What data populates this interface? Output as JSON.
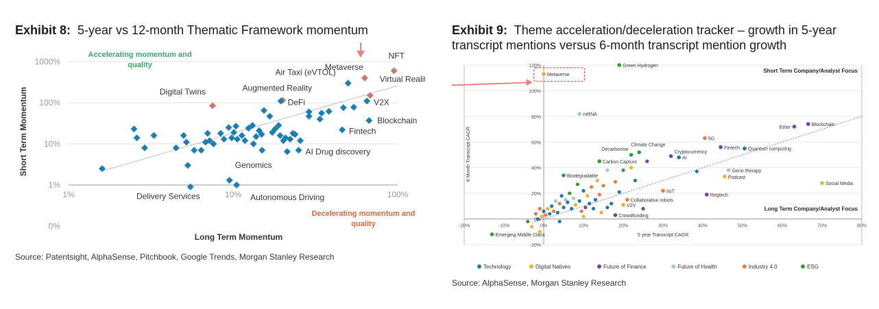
{
  "exhibit8": {
    "label": "Exhibit 8:",
    "title": "5-year vs 12-month Thematic Framework momentum",
    "source": "Source: Patentsight, AlphaSense, Pitchbook, Google Trends, Morgan Stanley Research"
  },
  "exhibit9": {
    "label": "Exhibit 9:",
    "title_line1": "Theme acceleration/deceleration tracker – growth in 5-year",
    "title_line2": "transcript mentions versus 6-month transcript mention growth",
    "source": "Source: AlphaSense, Morgan Stanley Research"
  },
  "colors": {
    "blue_marker": "#1b7fb5",
    "highlight_marker": "#c97b6b",
    "arrow": "#f08080",
    "green_text": "#3aa86a",
    "orange_text": "#e0673a",
    "technology": "#1f77b4",
    "digital_natives": "#f0b030",
    "future_finance": "#7b3f9e",
    "future_health": "#9ecae1",
    "industry": "#f0783c",
    "esg": "#2ca02c"
  },
  "chart_data": [
    {
      "type": "scatter",
      "title": "5-year vs 12-month Thematic Framework momentum",
      "xlabel": "Long Term Momentum",
      "ylabel": "Short Term Momentum",
      "xscale": "log",
      "yscale": "log",
      "x_ticks": [
        "1%",
        "10%",
        "100%"
      ],
      "y_ticks": [
        "1000%",
        "100%",
        "10%",
        "1%",
        "0%"
      ],
      "quadrant_labels": {
        "top_left": "Accelerating momentum and quality",
        "bottom_right": "Decelerating momentum and quality"
      },
      "labeled_points": [
        {
          "name": "NFT",
          "x": 95,
          "y": 600,
          "highlight": true
        },
        {
          "name": "Metaverse",
          "x": 63,
          "y": 400,
          "highlight": true
        },
        {
          "name": "Air Taxi (eVTOL)",
          "x": 50,
          "y": 300,
          "highlight": false
        },
        {
          "name": "Virtual Reality",
          "x": 68,
          "y": 150,
          "highlight": true
        },
        {
          "name": "Augmented Reality",
          "x": 20,
          "y": 115,
          "highlight": true
        },
        {
          "name": "DeFi",
          "x": 19.5,
          "y": 110,
          "highlight": false
        },
        {
          "name": "Digital Twins",
          "x": 7.5,
          "y": 85,
          "highlight": true
        },
        {
          "name": "V2X",
          "x": 65,
          "y": 110,
          "highlight": false
        },
        {
          "name": "Blockchain",
          "x": 67,
          "y": 37,
          "highlight": false
        },
        {
          "name": "Fintech",
          "x": 46,
          "y": 22,
          "highlight": false
        },
        {
          "name": "AI Drug discovery",
          "x": 25,
          "y": 7,
          "highlight": false
        },
        {
          "name": "Genomics",
          "x": 9.5,
          "y": 1.3,
          "highlight": false
        },
        {
          "name": "Delivery Services",
          "x": 5.5,
          "y": 0.9,
          "highlight": false
        },
        {
          "name": "Autonomous Driving",
          "x": 10.5,
          "y": 1.0,
          "highlight": false
        }
      ],
      "unlabeled_points": [
        [
          1.6,
          2.5
        ],
        [
          2.5,
          23
        ],
        [
          2.6,
          14
        ],
        [
          2.9,
          8
        ],
        [
          3.3,
          16
        ],
        [
          4.5,
          8
        ],
        [
          5.0,
          16
        ],
        [
          5.2,
          11
        ],
        [
          5.3,
          3
        ],
        [
          5.8,
          7
        ],
        [
          6.4,
          7
        ],
        [
          6.8,
          11
        ],
        [
          7.0,
          18
        ],
        [
          7.2,
          12
        ],
        [
          7.6,
          10
        ],
        [
          8.4,
          18
        ],
        [
          8.8,
          13
        ],
        [
          9.4,
          25
        ],
        [
          9.8,
          14
        ],
        [
          10.1,
          19
        ],
        [
          10.4,
          27
        ],
        [
          10.6,
          13
        ],
        [
          11.3,
          16
        ],
        [
          11.8,
          12
        ],
        [
          12.4,
          24
        ],
        [
          13.1,
          28
        ],
        [
          13.3,
          10
        ],
        [
          13.8,
          15
        ],
        [
          14.4,
          21
        ],
        [
          14.9,
          17
        ],
        [
          15.0,
          7
        ],
        [
          15.4,
          65
        ],
        [
          16.7,
          47
        ],
        [
          17.3,
          19
        ],
        [
          18.0,
          23
        ],
        [
          18.9,
          28
        ],
        [
          19.3,
          16
        ],
        [
          20.2,
          12
        ],
        [
          20.8,
          14
        ],
        [
          21.3,
          6.5
        ],
        [
          22.2,
          13
        ],
        [
          23.1,
          18
        ],
        [
          23.8,
          17
        ],
        [
          25.6,
          12
        ],
        [
          28.9,
          47
        ],
        [
          28.9,
          60
        ],
        [
          33.7,
          40
        ],
        [
          34.5,
          56
        ],
        [
          38.2,
          62
        ],
        [
          46.8,
          76
        ],
        [
          54.1,
          78
        ]
      ]
    },
    {
      "type": "scatter",
      "title": "Theme acceleration/deceleration tracker – growth in 5-year transcript mentions versus 6-month transcript mention growth",
      "xlabel": "5 year Transcript CAGR",
      "ylabel": "6 Month Transcript CAGR",
      "xlim": [
        -20,
        80
      ],
      "ylim": [
        -20,
        120
      ],
      "x_ticks": [
        "-20%",
        "-10%",
        "0%",
        "10%",
        "20%",
        "30%",
        "40%",
        "50%",
        "60%",
        "70%",
        "80%"
      ],
      "y_ticks": [
        "-20%",
        "0%",
        "20%",
        "40%",
        "60%",
        "80%",
        "100%",
        "120%"
      ],
      "corner_labels": {
        "top_right": "Short Term Company/Analyst Focus",
        "bottom_right": "Long Term Company/Analyst Focus"
      },
      "legend": [
        "Technology",
        "Digital Natives",
        "Future of Finance",
        "Future of Health",
        "Industry 4.0",
        "ESG"
      ],
      "labeled_points": [
        {
          "name": "Green Hydrogen",
          "x": 19,
          "y": 120,
          "cat": "ESG"
        },
        {
          "name": "Metaverse",
          "x": 0,
          "y": 113,
          "cat": "Digital Natives"
        },
        {
          "name": "mRNA",
          "x": 9,
          "y": 82,
          "cat": "Future of Health"
        },
        {
          "name": "Ether",
          "x": 63,
          "y": 72,
          "cat": "Future of Finance"
        },
        {
          "name": "Blockchain",
          "x": 66.5,
          "y": 74,
          "cat": "Future of Finance"
        },
        {
          "name": "5G",
          "x": 40.5,
          "y": 63,
          "cat": "Industry 4.0"
        },
        {
          "name": "Fintech",
          "x": 44.5,
          "y": 56,
          "cat": "Future of Finance"
        },
        {
          "name": "Quantum computing",
          "x": 50.5,
          "y": 55,
          "cat": "Technology"
        },
        {
          "name": "Decarbonise",
          "x": 22,
          "y": 50,
          "cat": "ESG"
        },
        {
          "name": "Climate Change",
          "x": 24,
          "y": 52,
          "cat": "ESG"
        },
        {
          "name": "Cryptocurrency",
          "x": 32,
          "y": 49,
          "cat": "Future of Finance"
        },
        {
          "name": "AI",
          "x": 34,
          "y": 48,
          "cat": "Technology"
        },
        {
          "name": "Carbon Capture",
          "x": 14,
          "y": 45,
          "cat": "ESG"
        },
        {
          "name": "Gene therapy",
          "x": 46.5,
          "y": 38,
          "cat": "Future of Health"
        },
        {
          "name": "Podcast",
          "x": 45.5,
          "y": 33,
          "cat": "Digital Natives"
        },
        {
          "name": "Biodegradable",
          "x": 5,
          "y": 34,
          "cat": "ESG"
        },
        {
          "name": "Social Media",
          "x": 70,
          "y": 28,
          "cat": "Digital Natives"
        },
        {
          "name": "IIoT",
          "x": 30,
          "y": 22,
          "cat": "Industry 4.0"
        },
        {
          "name": "Regtech",
          "x": 41,
          "y": 19,
          "cat": "Future of Finance"
        },
        {
          "name": "Collaborative robots",
          "x": 21,
          "y": 15,
          "cat": "Industry 4.0"
        },
        {
          "name": "V2V",
          "x": 20,
          "y": 11,
          "cat": "Digital Natives"
        },
        {
          "name": "Crowdfunding",
          "x": 18,
          "y": 3,
          "cat": "Future of Finance"
        },
        {
          "name": "Emerging Middle Class",
          "x": -13,
          "y": -12,
          "cat": "ESG"
        }
      ],
      "unlabeled_points": [
        [
          -2,
          4,
          "Industry 4.0"
        ],
        [
          -1,
          8,
          "Industry 4.0"
        ],
        [
          -0.5,
          2,
          "Digital Natives"
        ],
        [
          0,
          6,
          "Technology"
        ],
        [
          0.5,
          3,
          "Industry 4.0"
        ],
        [
          1,
          8,
          "Digital Natives"
        ],
        [
          1.5,
          4,
          "Technology"
        ],
        [
          2,
          10,
          "Technology"
        ],
        [
          2.5,
          6,
          "Industry 4.0"
        ],
        [
          3,
          14,
          "Future of Health"
        ],
        [
          3.5,
          5,
          "Technology"
        ],
        [
          4,
          12,
          "Industry 4.0"
        ],
        [
          4.5,
          18,
          "Technology"
        ],
        [
          5,
          9,
          "Technology"
        ],
        [
          5.5,
          15,
          "Future of Health"
        ],
        [
          6,
          13,
          "Technology"
        ],
        [
          6.5,
          20,
          "ESG"
        ],
        [
          7,
          8,
          "Technology"
        ],
        [
          7.5,
          16,
          "Future of Health"
        ],
        [
          8,
          11,
          "Digital Natives"
        ],
        [
          8.5,
          27,
          "ESG"
        ],
        [
          9,
          14,
          "Technology"
        ],
        [
          9.5,
          6,
          "Industry 4.0"
        ],
        [
          10,
          22,
          "Technology"
        ],
        [
          10.5,
          9,
          "Future of Finance"
        ],
        [
          11,
          18,
          "Digital Natives"
        ],
        [
          11.5,
          12,
          "Technology"
        ],
        [
          12,
          25,
          "Industry 4.0"
        ],
        [
          12.5,
          8,
          "Technology"
        ],
        [
          13,
          15,
          "Technology"
        ],
        [
          13.5,
          30,
          "Digital Natives"
        ],
        [
          14,
          19,
          "Industry 4.0"
        ],
        [
          14.5,
          5,
          "Digital Natives"
        ],
        [
          15,
          26,
          "Industry 4.0"
        ],
        [
          16,
          38,
          "Future of Health"
        ],
        [
          17,
          12,
          "Technology"
        ],
        [
          18,
          29,
          "Industry 4.0"
        ],
        [
          19,
          21,
          "Technology"
        ],
        [
          22,
          40,
          "Digital Natives"
        ],
        [
          23,
          30,
          "Technology"
        ],
        [
          25,
          8,
          "Future of Finance"
        ],
        [
          -1.5,
          0,
          "Technology"
        ],
        [
          -4,
          -2,
          "ESG"
        ],
        [
          -3,
          -6,
          "Digital Natives"
        ],
        [
          -1,
          -10,
          "Digital Natives"
        ],
        [
          4,
          -2,
          "Technology"
        ],
        [
          10,
          2,
          "Digital Natives"
        ],
        [
          16,
          9,
          "Technology"
        ],
        [
          38.5,
          37,
          "Technology"
        ],
        [
          26,
          45,
          "Future of Finance"
        ],
        [
          20,
          38,
          "ESG"
        ]
      ]
    }
  ]
}
